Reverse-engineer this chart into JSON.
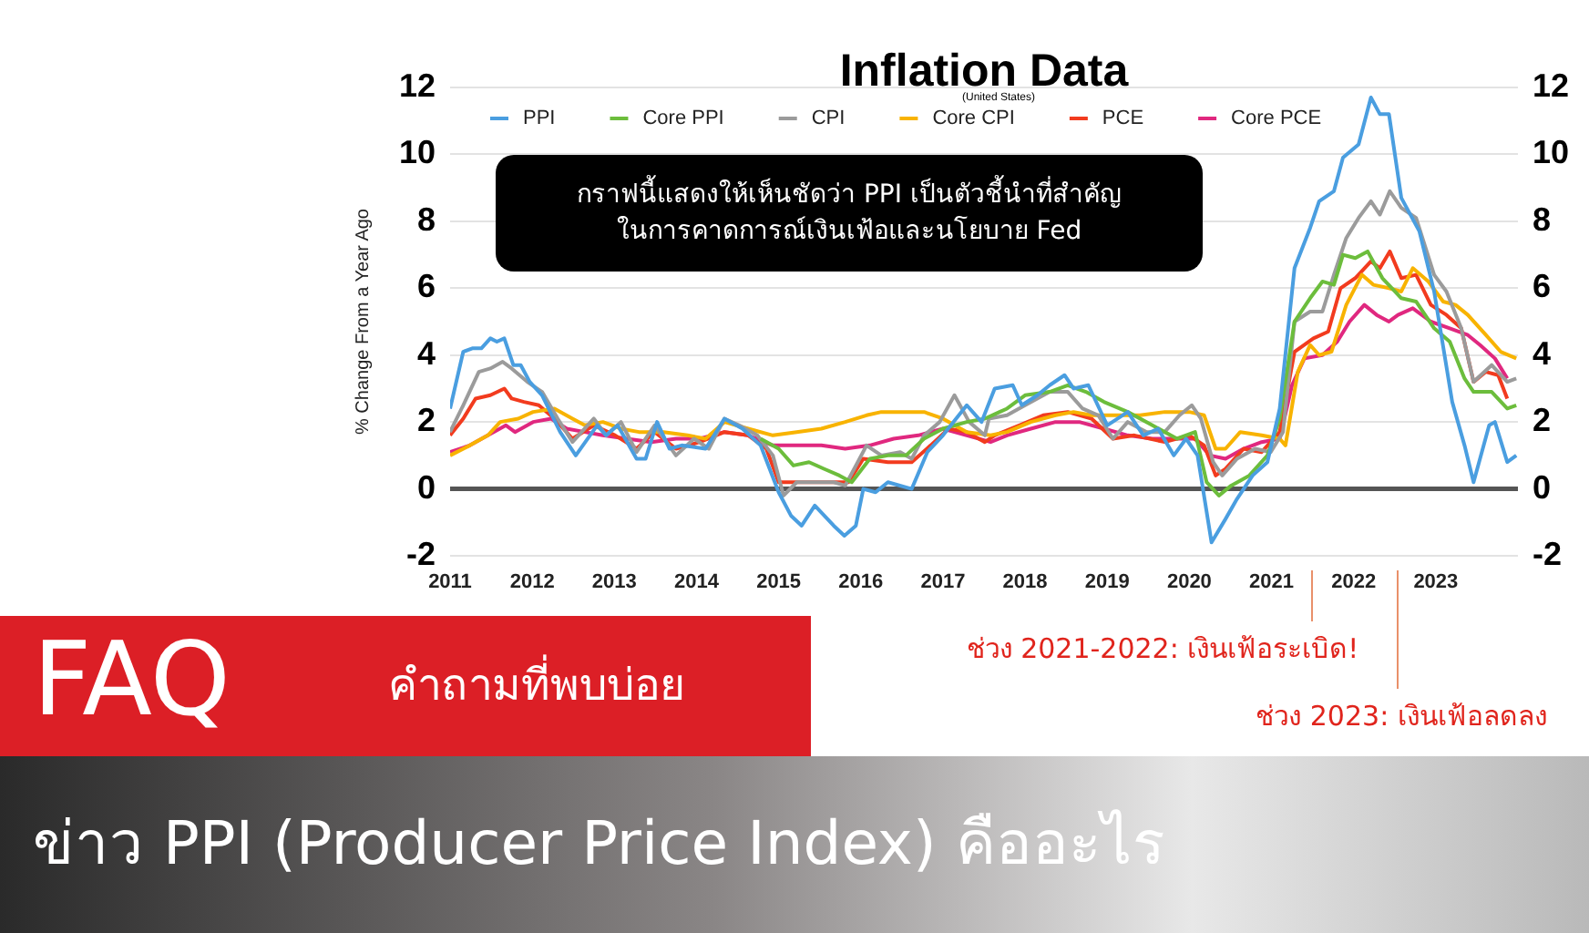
{
  "chart_data": {
    "type": "line",
    "title": "Inflation Data",
    "subtitle": "(United States)",
    "ylabel": "% Change From a Year Ago",
    "annotations": [
      "กราฟนี้แสดงให้เห็นชัดว่า PPI เป็นตัวชี้นำที่สำคัญ\nในการคาดการณ์เงินเฟ้อและนโยบาย Fed",
      "ช่วง 2021-2022: เงินเฟ้อระเบิด!",
      "ช่วง 2023: เงินเฟ้อลดลง",
      "FAQ",
      "คำถามที่พบบ่อย",
      "ข่าว PPI (Producer Price Index) คืออะไร"
    ],
    "xlim": [
      2011,
      2024
    ],
    "xticks": [
      2011,
      2012,
      2013,
      2014,
      2015,
      2016,
      2017,
      2018,
      2019,
      2020,
      2021,
      2022,
      2023
    ],
    "ylim": [
      -2,
      12
    ],
    "yticks": [
      -2,
      0,
      2,
      4,
      6,
      8,
      10,
      12
    ],
    "y2lim": [
      -2,
      12
    ],
    "y2ticks": [
      -2,
      0,
      2,
      4,
      6,
      8,
      10,
      12
    ],
    "grid": "y",
    "legend": "top",
    "ref_lines": [
      {
        "axis": "y",
        "value": 0,
        "color": "#555555"
      }
    ],
    "series": [
      {
        "name": "PPI",
        "color": "#4a9ee0",
        "x": [
          2011.0,
          2011.16,
          2011.27,
          2011.38,
          2011.49,
          2011.57,
          2011.66,
          2011.77,
          2011.86,
          2011.97,
          2012.12,
          2012.34,
          2012.53,
          2012.79,
          2012.9,
          2013.04,
          2013.27,
          2013.38,
          2013.52,
          2013.67,
          2013.82,
          2014.11,
          2014.34,
          2014.56,
          2014.78,
          2015.0,
          2015.15,
          2015.28,
          2015.44,
          2015.67,
          2015.8,
          2015.94,
          2016.03,
          2016.18,
          2016.33,
          2016.62,
          2016.81,
          2017.0,
          2017.29,
          2017.47,
          2017.63,
          2017.85,
          2017.96,
          2018.15,
          2018.3,
          2018.48,
          2018.59,
          2018.77,
          2019.0,
          2019.25,
          2019.44,
          2019.62,
          2019.81,
          2019.96,
          2020.1,
          2020.27,
          2020.44,
          2020.58,
          2020.77,
          2020.95,
          2021.1,
          2021.28,
          2021.47,
          2021.58,
          2021.76,
          2021.87,
          2022.06,
          2022.21,
          2022.32,
          2022.43,
          2022.58,
          2022.8,
          2022.98,
          2023.2,
          2023.35,
          2023.46,
          2023.65,
          2023.72,
          2023.87,
          2023.98
        ],
        "values": [
          2.4,
          4.1,
          4.2,
          4.2,
          4.5,
          4.4,
          4.5,
          3.7,
          3.7,
          3.2,
          2.8,
          1.7,
          1.0,
          1.9,
          1.6,
          1.9,
          0.9,
          0.9,
          2.0,
          1.2,
          1.3,
          1.2,
          2.1,
          1.8,
          1.3,
          -0.1,
          -0.8,
          -1.1,
          -0.5,
          -1.1,
          -1.4,
          -1.1,
          0.0,
          -0.1,
          0.2,
          0.0,
          1.1,
          1.6,
          2.5,
          2.0,
          3.0,
          3.1,
          2.5,
          2.8,
          3.1,
          3.4,
          3.0,
          3.1,
          1.9,
          2.3,
          1.6,
          1.8,
          1.0,
          1.5,
          1.0,
          -1.6,
          -0.9,
          -0.3,
          0.4,
          0.8,
          2.4,
          6.6,
          7.8,
          8.6,
          8.9,
          9.9,
          10.3,
          11.7,
          11.2,
          11.2,
          8.7,
          7.7,
          5.9,
          2.6,
          1.3,
          0.2,
          1.9,
          2.0,
          0.8,
          1.0
        ]
      },
      {
        "name": "Core PPI",
        "color": "#6cbd3c",
        "x": [
          2014.78,
          2015.0,
          2015.18,
          2015.37,
          2015.55,
          2015.74,
          2015.89,
          2016.11,
          2016.33,
          2016.55,
          2016.77,
          2017.0,
          2017.29,
          2017.51,
          2017.69,
          2017.78,
          2018.0,
          2018.3,
          2018.52,
          2018.74,
          2018.96,
          2019.25,
          2019.55,
          2019.85,
          2020.07,
          2020.21,
          2020.36,
          2020.51,
          2020.73,
          2020.95,
          2021.1,
          2021.28,
          2021.47,
          2021.62,
          2021.76,
          2021.87,
          2022.02,
          2022.17,
          2022.35,
          2022.58,
          2022.76,
          2022.98,
          2023.17,
          2023.35,
          2023.46,
          2023.68,
          2023.87,
          2023.98
        ],
        "values": [
          1.5,
          1.2,
          0.7,
          0.8,
          0.6,
          0.4,
          0.2,
          0.9,
          1.0,
          1.0,
          1.5,
          1.8,
          2.0,
          2.1,
          2.3,
          2.4,
          2.8,
          2.9,
          3.1,
          2.9,
          2.6,
          2.3,
          1.9,
          1.5,
          1.7,
          0.2,
          -0.2,
          0.1,
          0.4,
          1.0,
          2.1,
          5.0,
          5.7,
          6.2,
          6.1,
          7.0,
          6.9,
          7.1,
          6.3,
          5.7,
          5.6,
          4.8,
          4.4,
          3.3,
          2.9,
          2.9,
          2.4,
          2.5
        ]
      },
      {
        "name": "CPI",
        "color": "#9b9b9b",
        "x": [
          2011.0,
          2011.16,
          2011.35,
          2011.49,
          2011.64,
          2011.75,
          2011.94,
          2012.12,
          2012.31,
          2012.49,
          2012.75,
          2012.9,
          2013.08,
          2013.27,
          2013.49,
          2013.75,
          2013.97,
          2014.15,
          2014.34,
          2014.52,
          2014.74,
          2014.93,
          2015.06,
          2015.22,
          2015.44,
          2015.67,
          2015.81,
          2015.92,
          2016.07,
          2016.25,
          2016.48,
          2016.62,
          2016.77,
          2016.96,
          2017.14,
          2017.32,
          2017.51,
          2017.56,
          2017.78,
          2018.0,
          2018.3,
          2018.52,
          2018.7,
          2018.89,
          2019.07,
          2019.25,
          2019.48,
          2019.7,
          2019.88,
          2020.03,
          2020.14,
          2020.29,
          2020.4,
          2020.58,
          2020.8,
          2020.99,
          2021.14,
          2021.28,
          2021.47,
          2021.62,
          2021.76,
          2021.91,
          2022.06,
          2022.21,
          2022.32,
          2022.44,
          2022.58,
          2022.76,
          2022.98,
          2023.13,
          2023.31,
          2023.46,
          2023.68,
          2023.87,
          2023.98
        ],
        "values": [
          1.7,
          2.5,
          3.5,
          3.6,
          3.8,
          3.6,
          3.2,
          2.9,
          2.1,
          1.4,
          2.1,
          1.6,
          2.0,
          1.1,
          1.9,
          1.0,
          1.5,
          1.2,
          2.1,
          1.9,
          1.6,
          1.0,
          -0.2,
          0.2,
          0.2,
          0.2,
          0.1,
          0.6,
          1.3,
          1.0,
          1.1,
          0.9,
          1.6,
          2.0,
          2.8,
          2.0,
          1.6,
          2.1,
          2.2,
          2.5,
          2.9,
          2.9,
          2.4,
          2.2,
          1.5,
          2.0,
          1.7,
          1.7,
          2.2,
          2.5,
          2.1,
          0.8,
          0.4,
          0.9,
          1.2,
          1.1,
          1.7,
          5.0,
          5.3,
          5.3,
          6.4,
          7.5,
          8.1,
          8.6,
          8.2,
          8.9,
          8.4,
          8.1,
          6.4,
          5.9,
          4.8,
          3.2,
          3.7,
          3.2,
          3.3
        ]
      },
      {
        "name": "Core CPI",
        "color": "#f8b300",
        "x": [
          2011.0,
          2011.24,
          2011.46,
          2011.61,
          2011.83,
          2012.01,
          2012.27,
          2012.49,
          2012.64,
          2012.86,
          2013.08,
          2013.3,
          2013.6,
          2013.89,
          2014.11,
          2014.34,
          2014.63,
          2014.93,
          2015.22,
          2015.52,
          2015.81,
          2016.07,
          2016.25,
          2016.55,
          2016.77,
          2017.0,
          2017.29,
          2017.58,
          2017.78,
          2018.07,
          2018.37,
          2018.59,
          2018.81,
          2019.11,
          2019.4,
          2019.7,
          2020.0,
          2020.18,
          2020.32,
          2020.44,
          2020.62,
          2020.88,
          2021.1,
          2021.17,
          2021.32,
          2021.47,
          2021.58,
          2021.73,
          2021.91,
          2022.1,
          2022.24,
          2022.43,
          2022.58,
          2022.72,
          2022.91,
          2023.09,
          2023.24,
          2023.39,
          2023.61,
          2023.79,
          2023.98
        ],
        "values": [
          1.0,
          1.3,
          1.6,
          2.0,
          2.1,
          2.3,
          2.4,
          2.1,
          1.9,
          2.0,
          1.8,
          1.7,
          1.7,
          1.6,
          1.5,
          2.0,
          1.8,
          1.6,
          1.7,
          1.8,
          2.0,
          2.2,
          2.3,
          2.3,
          2.3,
          2.1,
          1.7,
          1.6,
          1.7,
          2.0,
          2.2,
          2.3,
          2.2,
          2.2,
          2.2,
          2.3,
          2.3,
          2.2,
          1.2,
          1.2,
          1.7,
          1.6,
          1.5,
          1.3,
          3.5,
          4.3,
          4.0,
          4.1,
          5.5,
          6.4,
          6.1,
          6.0,
          5.9,
          6.6,
          6.2,
          5.6,
          5.5,
          5.2,
          4.6,
          4.1,
          3.9
        ]
      },
      {
        "name": "PCE",
        "color": "#f23b1e",
        "x": [
          2011.0,
          2011.16,
          2011.31,
          2011.49,
          2011.66,
          2011.75,
          2011.9,
          2012.08,
          2012.27,
          2012.49,
          2012.75,
          2013.01,
          2013.27,
          2013.49,
          2013.75,
          2014.04,
          2014.34,
          2014.63,
          2014.85,
          2015.0,
          2015.22,
          2015.44,
          2015.67,
          2015.85,
          2016.03,
          2016.33,
          2016.62,
          2016.85,
          2017.07,
          2017.29,
          2017.51,
          2017.63,
          2017.93,
          2018.22,
          2018.52,
          2018.81,
          2019.07,
          2019.33,
          2019.7,
          2020.0,
          2020.18,
          2020.32,
          2020.44,
          2020.66,
          2020.88,
          2021.1,
          2021.28,
          2021.51,
          2021.69,
          2021.84,
          2022.02,
          2022.21,
          2022.32,
          2022.44,
          2022.58,
          2022.76,
          2022.94,
          2023.13,
          2023.31,
          2023.46,
          2023.61,
          2023.76,
          2023.87
        ],
        "values": [
          1.6,
          2.1,
          2.7,
          2.8,
          3.0,
          2.7,
          2.6,
          2.5,
          2.1,
          1.5,
          1.9,
          1.6,
          1.2,
          1.7,
          1.2,
          1.4,
          1.7,
          1.6,
          1.2,
          0.2,
          0.2,
          0.2,
          0.2,
          0.2,
          0.9,
          0.8,
          0.8,
          1.3,
          1.8,
          1.7,
          1.4,
          1.6,
          1.9,
          2.2,
          2.3,
          2.1,
          1.5,
          1.6,
          1.4,
          1.6,
          1.3,
          0.4,
          0.6,
          1.2,
          1.1,
          1.7,
          4.1,
          4.5,
          4.7,
          6.0,
          6.3,
          6.8,
          6.6,
          7.1,
          6.3,
          6.4,
          5.5,
          5.2,
          4.8,
          3.2,
          3.5,
          3.4,
          2.7
        ]
      },
      {
        "name": "Core PCE",
        "color": "#e0287f",
        "x": [
          2011.0,
          2011.24,
          2011.46,
          2011.68,
          2011.79,
          2012.01,
          2012.23,
          2012.42,
          2012.64,
          2012.86,
          2013.15,
          2013.45,
          2013.75,
          2014.04,
          2014.34,
          2014.63,
          2014.93,
          2015.22,
          2015.52,
          2015.81,
          2016.11,
          2016.4,
          2016.7,
          2017.0,
          2017.29,
          2017.58,
          2017.78,
          2018.07,
          2018.37,
          2018.66,
          2018.96,
          2019.25,
          2019.55,
          2019.85,
          2020.07,
          2020.25,
          2020.44,
          2020.66,
          2020.88,
          2021.1,
          2021.25,
          2021.4,
          2021.62,
          2021.8,
          2021.95,
          2022.13,
          2022.28,
          2022.43,
          2022.54,
          2022.72,
          2022.94,
          2023.17,
          2023.39,
          2023.54,
          2023.72,
          2023.87
        ],
        "values": [
          1.1,
          1.3,
          1.6,
          1.9,
          1.7,
          2.0,
          2.1,
          1.8,
          1.7,
          1.6,
          1.5,
          1.4,
          1.5,
          1.5,
          1.7,
          1.6,
          1.3,
          1.3,
          1.3,
          1.2,
          1.3,
          1.5,
          1.6,
          1.8,
          1.6,
          1.4,
          1.6,
          1.8,
          2.0,
          2.0,
          1.8,
          1.6,
          1.5,
          1.5,
          1.5,
          1.0,
          0.9,
          1.2,
          1.4,
          1.5,
          3.1,
          3.9,
          4.0,
          4.4,
          5.0,
          5.5,
          5.2,
          5.0,
          5.2,
          5.4,
          5.0,
          4.8,
          4.6,
          4.3,
          3.9,
          3.3
        ]
      }
    ]
  }
}
